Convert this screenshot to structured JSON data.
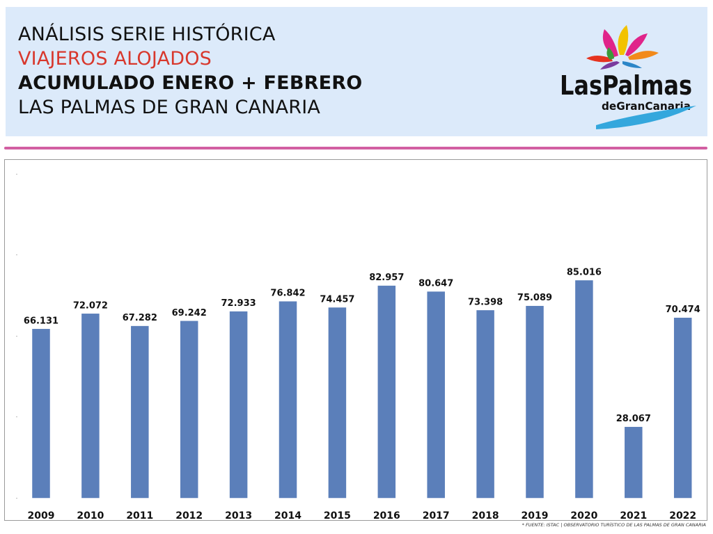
{
  "header": {
    "line1": "ANÁLISIS SERIE HISTÓRICA",
    "line2": "VIAJEROS ALOJADOS",
    "line3": "ACUMULADO ENERO + FEBRERO",
    "line4": "LAS PALMAS DE GRAN CANARIA"
  },
  "logo": {
    "main": "LasPalmas",
    "sub": "deGranCanaria"
  },
  "source_note": "* FUENTE: ISTAC | OBSERVATORIO TURÍSTICO DE LAS PALMAS DE GRAN CANARIA",
  "colors": {
    "bar": "#5b7fba",
    "accent_red": "#d8372c",
    "divider": "#d25fa2",
    "header_bg": "#dceafa"
  },
  "chart_data": {
    "type": "bar",
    "categories": [
      "2009",
      "2010",
      "2011",
      "2012",
      "2013",
      "2014",
      "2015",
      "2016",
      "2017",
      "2018",
      "2019",
      "2020",
      "2021",
      "2022"
    ],
    "values": [
      66131,
      72072,
      67282,
      69242,
      72933,
      76842,
      74457,
      82957,
      80647,
      73398,
      75089,
      85016,
      28067,
      70474
    ],
    "labels": [
      "66.131",
      "72.072",
      "67.282",
      "69.242",
      "72.933",
      "76.842",
      "74.457",
      "82.957",
      "80.647",
      "73.398",
      "75.089",
      "85.016",
      "28.067",
      "70.474"
    ],
    "ylim": [
      0,
      100000
    ],
    "grid": false,
    "legend": "none"
  }
}
